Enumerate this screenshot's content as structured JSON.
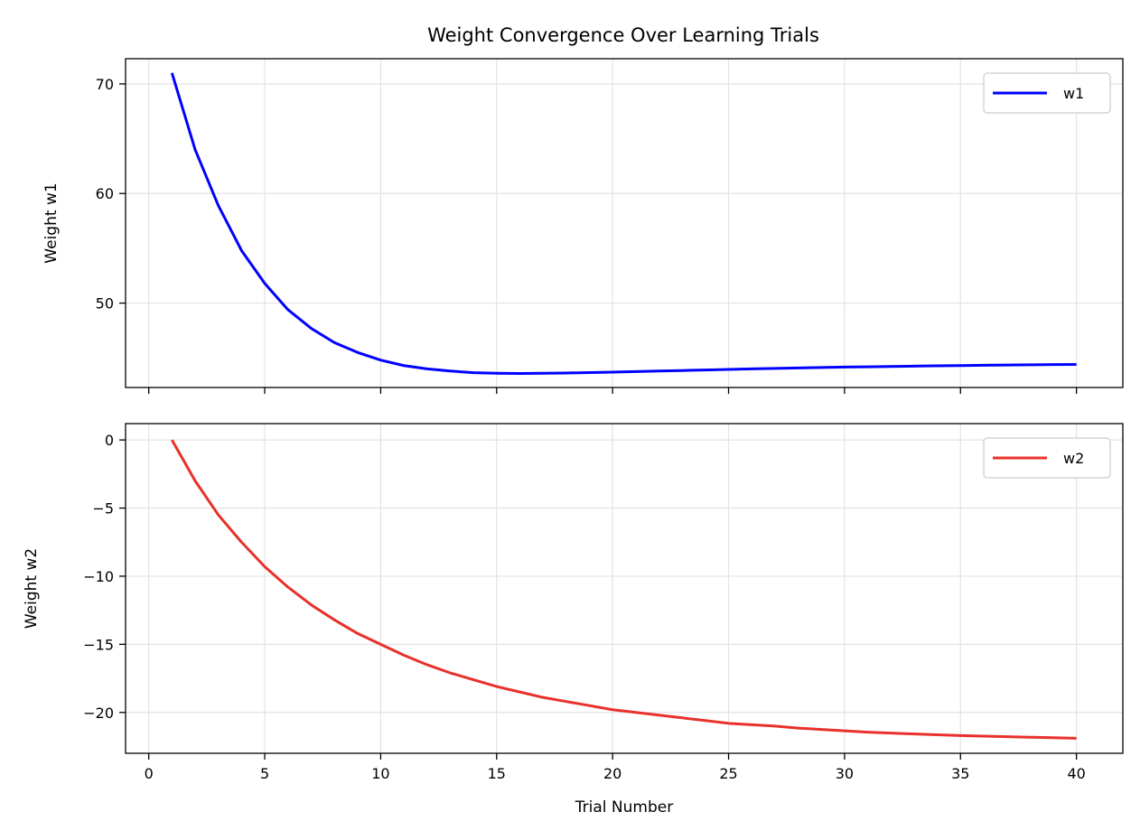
{
  "chart_data": [
    {
      "type": "line",
      "title": "Weight Convergence Over Learning Trials",
      "xlabel": "",
      "ylabel": "Weight w1",
      "xlim": [
        -1,
        42
      ],
      "ylim": [
        42.3,
        72.3
      ],
      "xticks": [
        0,
        5,
        10,
        15,
        20,
        25,
        30,
        35,
        40
      ],
      "xtick_labels_visible": false,
      "yticks": [
        50,
        60,
        70
      ],
      "grid": true,
      "legend": "top-right",
      "series": [
        {
          "name": "w1",
          "color": "#0000ff",
          "x": [
            1,
            2,
            3,
            4,
            5,
            6,
            7,
            8,
            9,
            10,
            11,
            12,
            13,
            14,
            15,
            16,
            17,
            18,
            19,
            20,
            21,
            22,
            23,
            24,
            25,
            26,
            27,
            28,
            29,
            30,
            31,
            32,
            33,
            34,
            35,
            36,
            37,
            38,
            39,
            40
          ],
          "y": [
            71.0,
            64.0,
            58.9,
            54.8,
            51.8,
            49.4,
            47.7,
            46.4,
            45.5,
            44.8,
            44.3,
            44.0,
            43.8,
            43.65,
            43.6,
            43.58,
            43.6,
            43.62,
            43.66,
            43.7,
            43.75,
            43.8,
            43.85,
            43.9,
            43.95,
            44.0,
            44.04,
            44.08,
            44.12,
            44.16,
            44.19,
            44.22,
            44.25,
            44.28,
            44.3,
            44.33,
            44.35,
            44.37,
            44.39,
            44.4
          ]
        }
      ]
    },
    {
      "type": "line",
      "title": "",
      "xlabel": "Trial Number",
      "ylabel": "Weight w2",
      "xlim": [
        -1,
        42
      ],
      "ylim": [
        -23.0,
        1.2
      ],
      "xticks": [
        0,
        5,
        10,
        15,
        20,
        25,
        30,
        35,
        40
      ],
      "yticks": [
        0,
        -5,
        -10,
        -15,
        -20
      ],
      "ytick_labels": [
        "0",
        "−5",
        "−10",
        "−15",
        "−20"
      ],
      "grid": true,
      "legend": "top-right",
      "series": [
        {
          "name": "w2",
          "color": "#e8312a",
          "x": [
            1,
            2,
            3,
            4,
            5,
            6,
            7,
            8,
            9,
            10,
            11,
            12,
            13,
            14,
            15,
            16,
            17,
            18,
            19,
            20,
            21,
            22,
            23,
            24,
            25,
            26,
            27,
            28,
            29,
            30,
            31,
            32,
            33,
            34,
            35,
            36,
            37,
            38,
            39,
            40
          ],
          "y": [
            0.0,
            -3.0,
            -5.5,
            -7.5,
            -9.3,
            -10.8,
            -12.1,
            -13.2,
            -14.2,
            -15.0,
            -15.8,
            -16.5,
            -17.1,
            -17.6,
            -18.1,
            -18.5,
            -18.9,
            -19.2,
            -19.5,
            -19.8,
            -20.0,
            -20.2,
            -20.4,
            -20.6,
            -20.8,
            -20.9,
            -21.0,
            -21.15,
            -21.25,
            -21.35,
            -21.45,
            -21.52,
            -21.58,
            -21.64,
            -21.7,
            -21.74,
            -21.78,
            -21.82,
            -21.86,
            -21.9
          ]
        }
      ]
    }
  ]
}
